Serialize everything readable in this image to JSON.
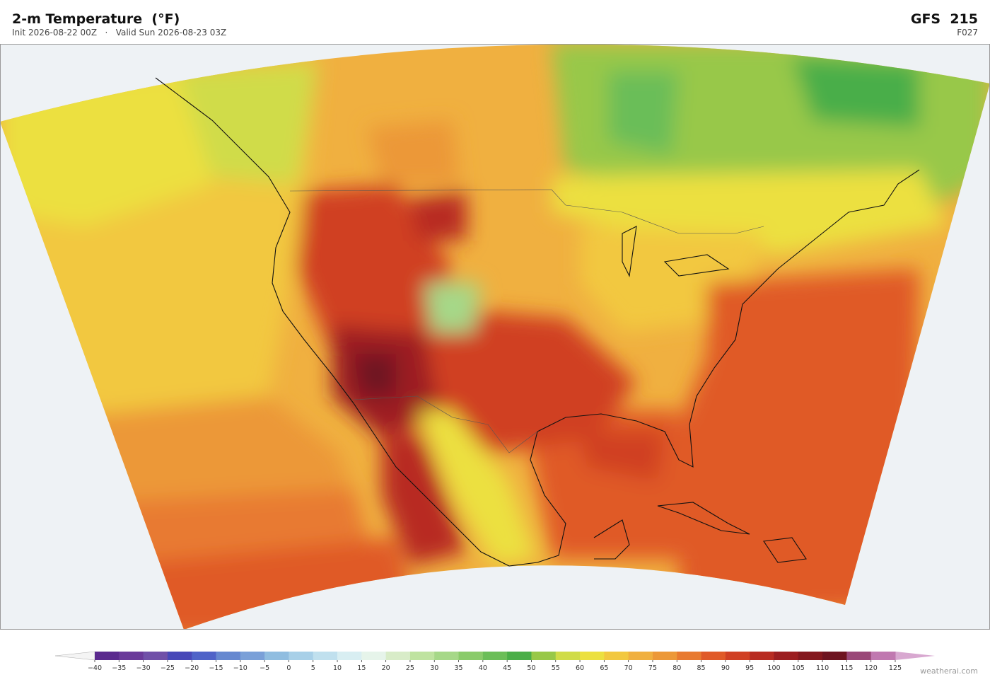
{
  "header": {
    "title": "2-m Temperature  (°F)",
    "init": "Init 2026-08-22 00Z",
    "separator": "·",
    "valid": "Valid Sun 2026-08-23 03Z",
    "model": "GFS  215",
    "forecast_hour": "F027"
  },
  "colorbar": {
    "ticks": [
      {
        "value": -40,
        "label": "−40"
      },
      {
        "value": -35,
        "label": "−35"
      },
      {
        "value": -30,
        "label": "−30"
      },
      {
        "value": -25,
        "label": "−25"
      },
      {
        "value": -20,
        "label": "−20"
      },
      {
        "value": -15,
        "label": "−15"
      },
      {
        "value": -10,
        "label": "−10"
      },
      {
        "value": -5,
        "label": "−5"
      },
      0,
      5,
      10,
      15,
      20,
      25,
      30,
      35,
      40,
      45,
      50,
      55,
      60,
      65,
      70,
      75,
      80,
      85,
      90,
      95,
      100,
      105,
      110,
      115,
      120,
      125
    ],
    "colors": [
      "#5b2a8e",
      "#6a3a9a",
      "#7050a8",
      "#4848b8",
      "#4f63c8",
      "#6688d0",
      "#7aa0d8",
      "#90bde0",
      "#a8d0e8",
      "#c0e0ee",
      "#d8eef2",
      "#e6f4ea",
      "#d8ecc8",
      "#bfe3a0",
      "#a6d888",
      "#8acb6a",
      "#6bbe58",
      "#4aae48",
      "#98c848",
      "#d0dc48",
      "#ece040",
      "#f2c840",
      "#f0b040",
      "#ec9838",
      "#e87a30",
      "#e05a28",
      "#d04024",
      "#b82c22",
      "#9c1e20",
      "#84181e",
      "#6e1420",
      "#9a4878",
      "#c078b0"
    ],
    "extend_colors": [
      "#f4f4f4",
      "#d8a8d0"
    ]
  },
  "footer": {
    "credit": "weatherai.com"
  }
}
